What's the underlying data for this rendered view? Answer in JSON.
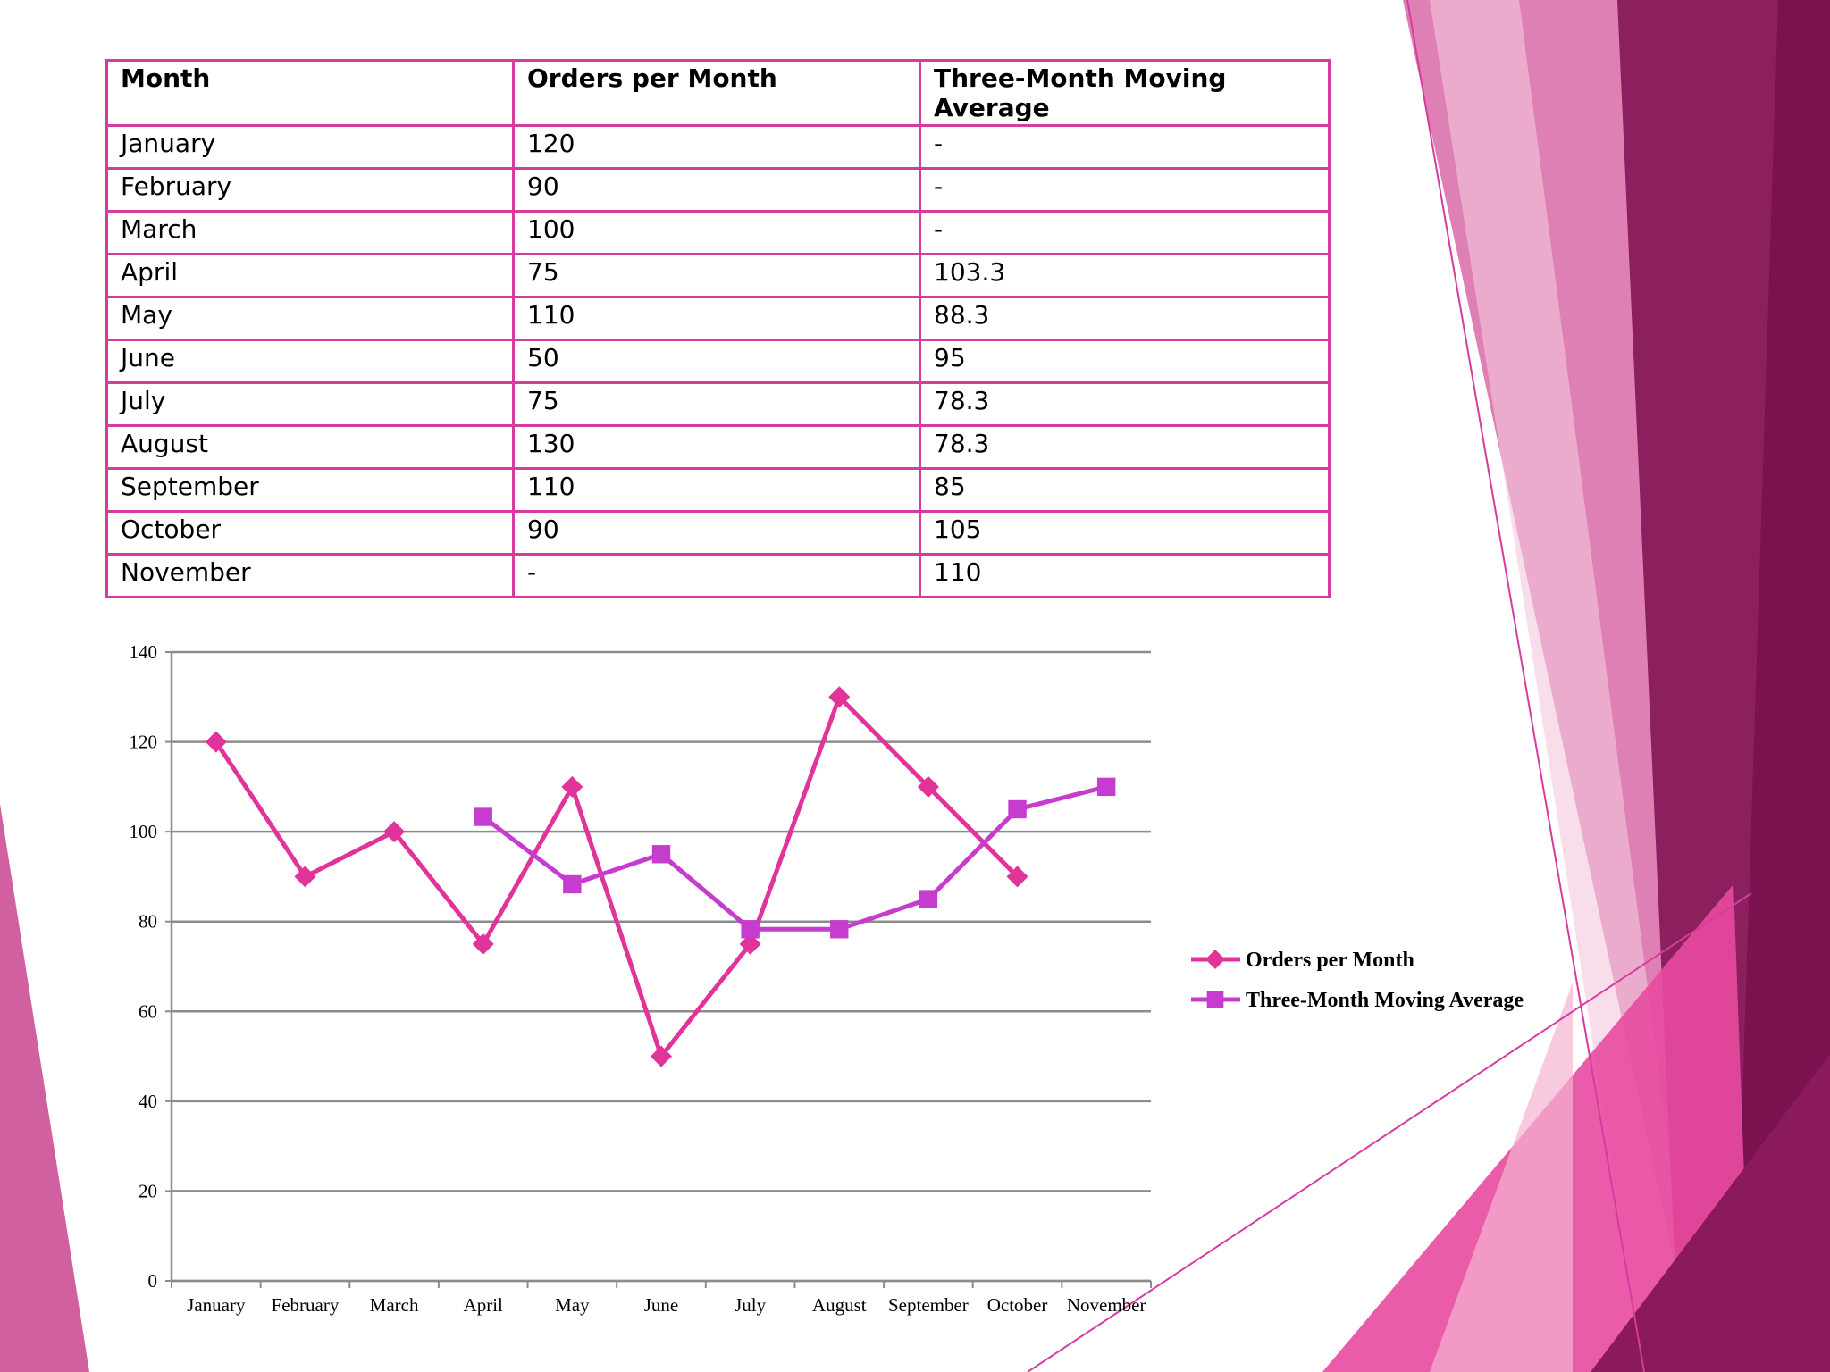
{
  "colors": {
    "accent": "#d63b9e",
    "orders_series": "#e0349a",
    "moving_avg_series": "#c63ccf",
    "grid": "#8c8c8c"
  },
  "table": {
    "headers": [
      "Month",
      "Orders per Month",
      "Three-Month Moving Average"
    ],
    "rows": [
      [
        "January",
        "120",
        "-"
      ],
      [
        "February",
        "90",
        "-"
      ],
      [
        "March",
        "100",
        "-"
      ],
      [
        "April",
        "75",
        "103.3"
      ],
      [
        "May",
        "110",
        "88.3"
      ],
      [
        "June",
        "50",
        "95"
      ],
      [
        "July",
        "75",
        "78.3"
      ],
      [
        "August",
        "130",
        "78.3"
      ],
      [
        "September",
        "110",
        "85"
      ],
      [
        "October",
        "90",
        "105"
      ],
      [
        "November",
        "-",
        "110"
      ]
    ]
  },
  "chart_data": {
    "type": "line",
    "title": "",
    "xlabel": "",
    "ylabel": "",
    "categories": [
      "January",
      "February",
      "March",
      "April",
      "May",
      "June",
      "July",
      "August",
      "September",
      "October",
      "November"
    ],
    "ylim": [
      0,
      140
    ],
    "yticks": [
      0,
      20,
      40,
      60,
      80,
      100,
      120,
      140
    ],
    "grid": true,
    "legend_position": "right",
    "series": [
      {
        "name": "Orders per Month",
        "marker": "diamond",
        "values": [
          120,
          90,
          100,
          75,
          110,
          50,
          75,
          130,
          110,
          90,
          null
        ]
      },
      {
        "name": "Three-Month Moving Average",
        "marker": "square",
        "values": [
          null,
          null,
          null,
          103.3,
          88.3,
          95,
          78.3,
          78.3,
          85,
          105,
          110
        ]
      }
    ]
  }
}
